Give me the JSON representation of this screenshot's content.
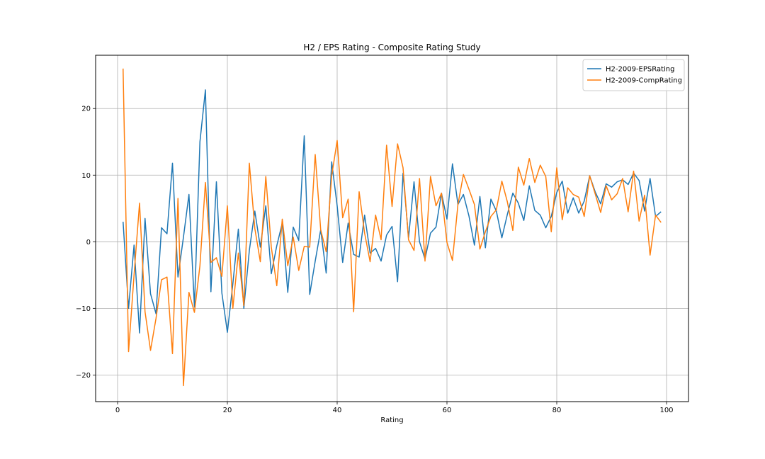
{
  "chart_data": {
    "type": "line",
    "title": "H2 / EPS Rating - Composite Rating Study",
    "xlabel": "Rating",
    "ylabel": "",
    "xlim": [
      -4,
      104
    ],
    "ylim": [
      -24,
      28
    ],
    "xticks": [
      0,
      20,
      40,
      60,
      80,
      100
    ],
    "yticks": [
      -20,
      -10,
      0,
      10,
      20
    ],
    "grid": true,
    "legend_position": "upper right",
    "x": [
      1,
      2,
      3,
      4,
      5,
      6,
      7,
      8,
      9,
      10,
      11,
      12,
      13,
      14,
      15,
      16,
      17,
      18,
      19,
      20,
      21,
      22,
      23,
      24,
      25,
      26,
      27,
      28,
      29,
      30,
      31,
      32,
      33,
      34,
      35,
      36,
      37,
      38,
      39,
      40,
      41,
      42,
      43,
      44,
      45,
      46,
      47,
      48,
      49,
      50,
      51,
      52,
      53,
      54,
      55,
      56,
      57,
      58,
      59,
      60,
      61,
      62,
      63,
      64,
      65,
      66,
      67,
      68,
      69,
      70,
      71,
      72,
      73,
      74,
      75,
      76,
      77,
      78,
      79,
      80,
      81,
      82,
      83,
      84,
      85,
      86,
      87,
      88,
      89,
      90,
      91,
      92,
      93,
      94,
      95,
      96,
      97,
      98,
      99
    ],
    "series": [
      {
        "name": "H2-2009-EPSRating",
        "color": "#1f77b4",
        "values": [
          3.0,
          -10.0,
          -0.5,
          -13.7,
          3.5,
          -7.8,
          -10.8,
          2.1,
          1.2,
          11.8,
          -5.3,
          0.7,
          7.1,
          -9.8,
          15.0,
          22.8,
          -7.5,
          9.0,
          -7.7,
          -13.6,
          -6.3,
          1.9,
          -10.0,
          -1.3,
          4.6,
          -0.8,
          5.4,
          -4.8,
          -0.6,
          2.8,
          -7.6,
          2.2,
          0.2,
          15.9,
          -7.9,
          -2.9,
          1.8,
          -4.7,
          12.0,
          5.4,
          -3.1,
          2.8,
          -1.9,
          -2.3,
          4.0,
          -1.7,
          -1.0,
          -2.9,
          1.0,
          2.3,
          -6.0,
          10.3,
          0.6,
          9.0,
          0.0,
          -2.6,
          1.3,
          2.2,
          7.3,
          3.4,
          11.7,
          5.6,
          7.1,
          3.9,
          -0.5,
          6.8,
          -0.9,
          6.4,
          4.6,
          0.6,
          4.1,
          7.3,
          5.8,
          3.2,
          8.4,
          4.7,
          4.0,
          2.1,
          3.8,
          7.4,
          9.1,
          4.3,
          6.6,
          4.3,
          6.1,
          9.9,
          7.5,
          5.7,
          8.7,
          8.2,
          9.0,
          9.3,
          8.6,
          10.3,
          9.2,
          4.6,
          9.5,
          3.8,
          4.5
        ]
      },
      {
        "name": "H2-2009-CompRating",
        "color": "#ff7f0e",
        "values": [
          26.0,
          -16.5,
          -5.0,
          5.8,
          -10.5,
          -16.3,
          -11.5,
          -5.7,
          -5.3,
          -16.8,
          6.5,
          -21.6,
          -7.6,
          -10.6,
          -3.6,
          8.9,
          -3.1,
          -2.4,
          -5.2,
          5.4,
          -10.0,
          -1.7,
          -9.6,
          11.8,
          2.0,
          -3.0,
          9.8,
          -0.8,
          -6.6,
          3.4,
          -3.6,
          0.7,
          -4.3,
          -0.7,
          -0.8,
          13.1,
          1.8,
          -1.5,
          9.9,
          15.2,
          3.6,
          6.4,
          -10.5,
          7.5,
          1.3,
          -3.0,
          4.0,
          0.3,
          14.5,
          5.3,
          14.7,
          11.1,
          0.3,
          -1.3,
          9.5,
          -2.9,
          9.8,
          5.4,
          7.3,
          -0.1,
          -2.8,
          5.6,
          10.1,
          7.9,
          5.6,
          -1.1,
          1.5,
          3.8,
          4.8,
          9.1,
          6.0,
          1.7,
          11.2,
          8.5,
          12.5,
          8.9,
          11.5,
          9.8,
          1.5,
          11.1,
          3.3,
          8.1,
          7.1,
          6.7,
          3.8,
          9.9,
          7.2,
          4.4,
          8.4,
          6.3,
          7.2,
          9.5,
          4.5,
          10.6,
          3.1,
          7.0,
          -2.0,
          4.0,
          2.9
        ]
      }
    ]
  }
}
